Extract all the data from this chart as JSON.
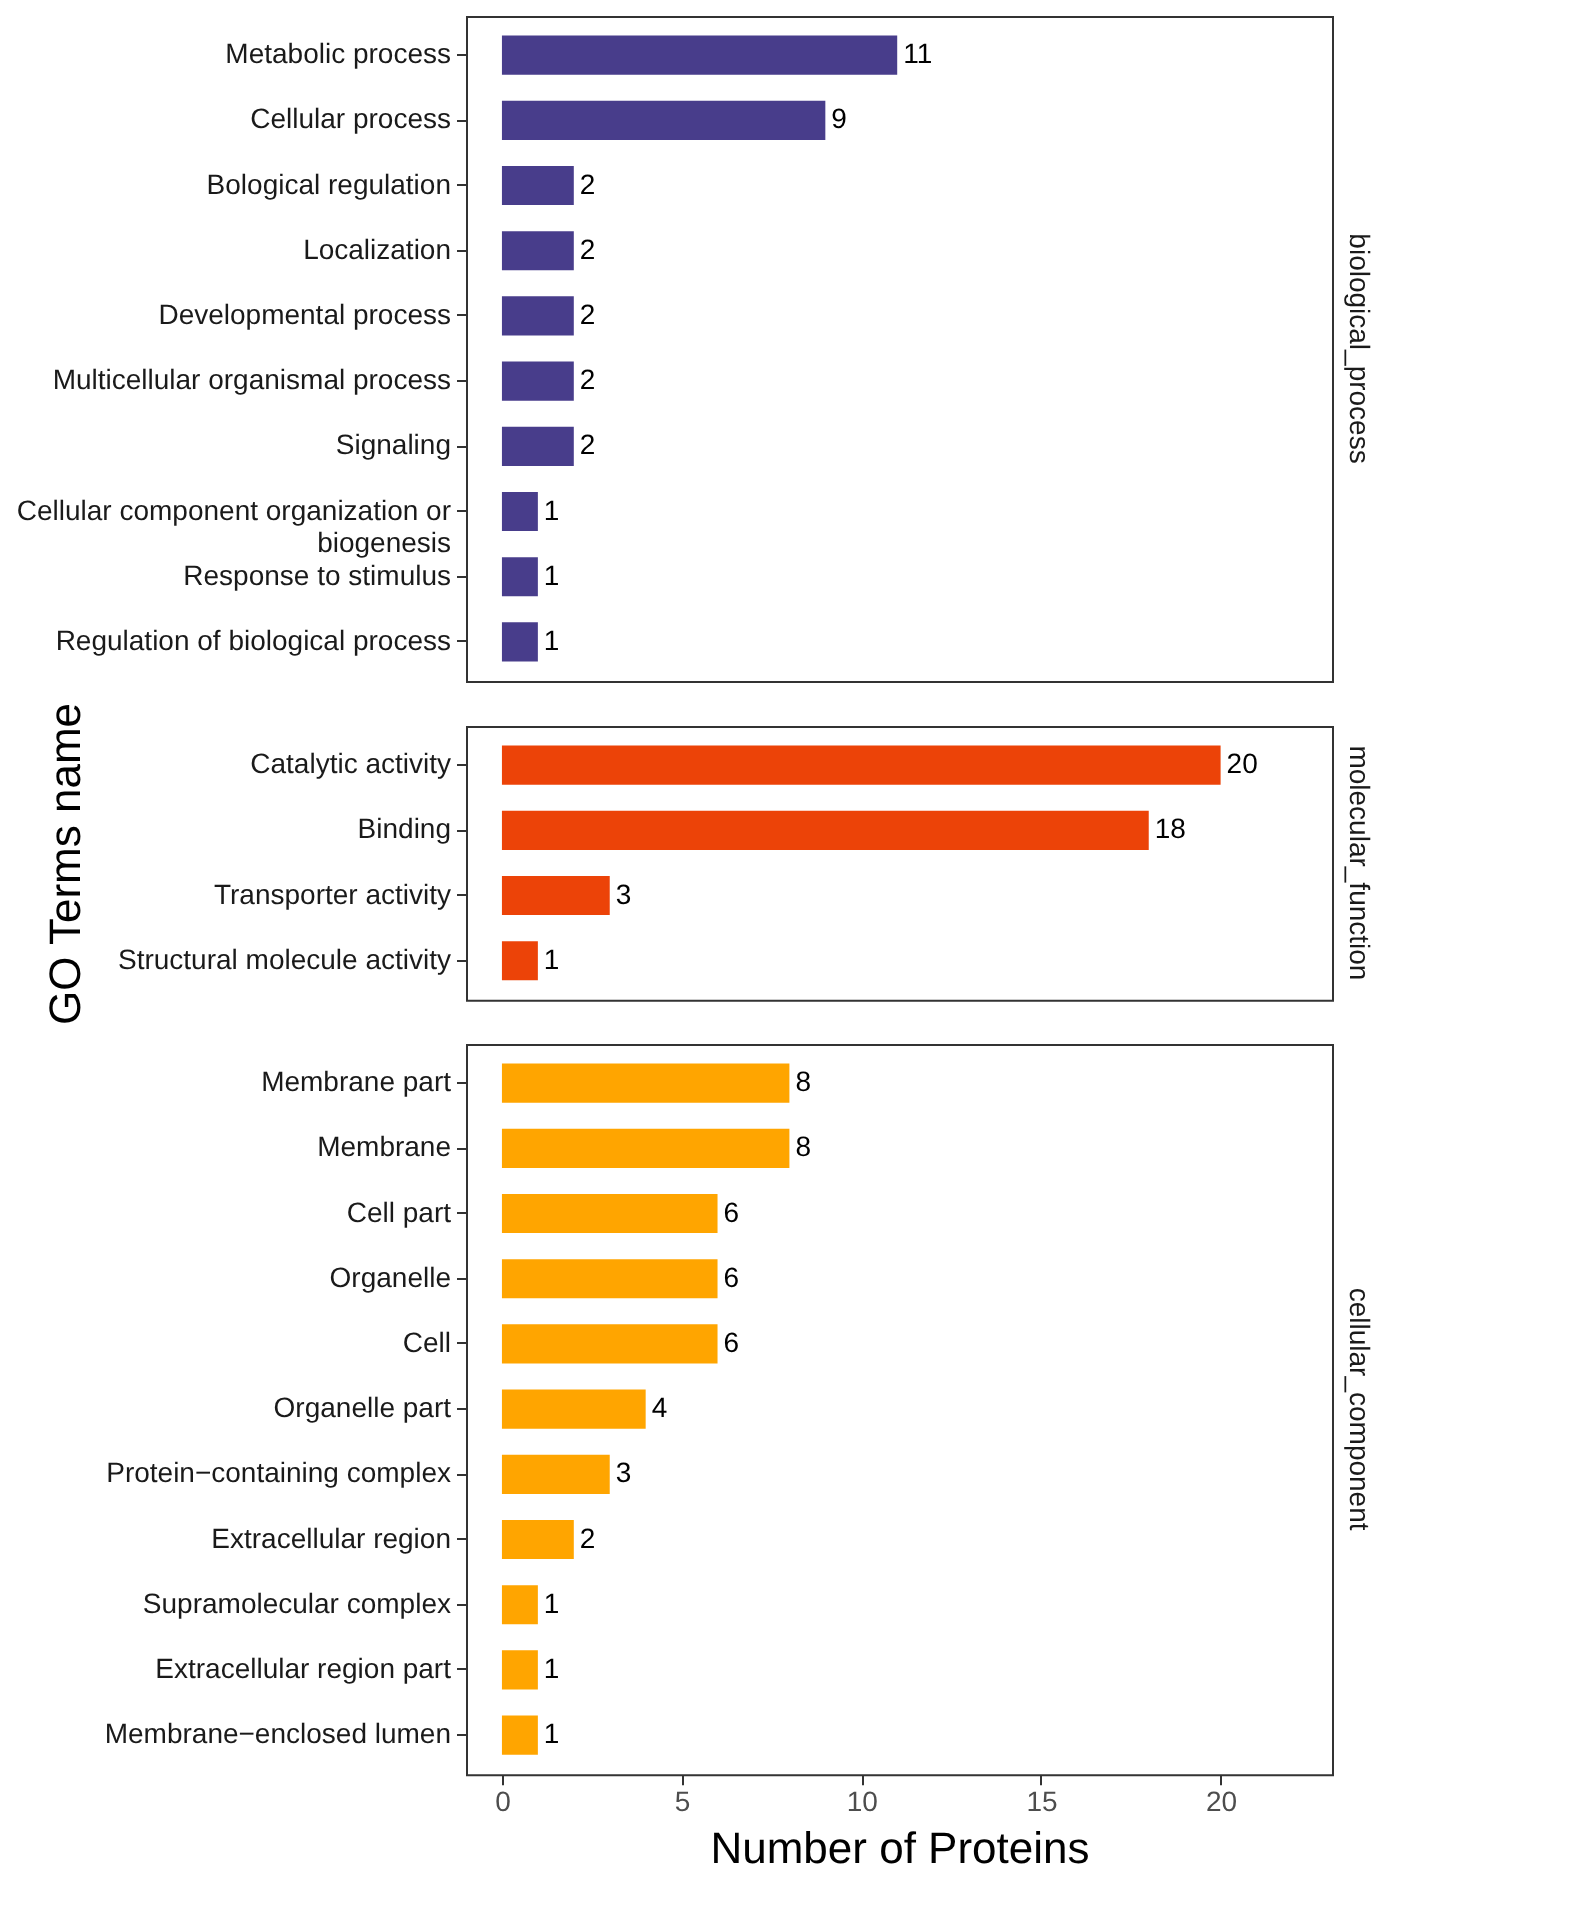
{
  "chart_data": [
    {
      "type": "bar",
      "orientation": "horizontal",
      "title": "biological_process",
      "categories": [
        "Metabolic process",
        "Cellular process",
        "Bological regulation",
        "Localization",
        "Developmental process",
        "Multicellular organismal process",
        "Signaling",
        "Cellular component organization or biogenesis",
        "Response to stimulus",
        "Regulation of biological process"
      ],
      "values": [
        11,
        9,
        2,
        2,
        2,
        2,
        2,
        1,
        1,
        1
      ],
      "color": "#483d8b",
      "xlim": [
        -1,
        23.1
      ],
      "xticks": [
        0,
        5,
        10,
        15,
        20
      ],
      "data_labels": true,
      "tick_labels": "y",
      "grid": false
    },
    {
      "type": "bar",
      "orientation": "horizontal",
      "title": "molecular_function",
      "ylabel": "GO Terms name",
      "categories": [
        "Catalytic activity",
        "Binding",
        "Transporter activity",
        "Structural molecule activity"
      ],
      "values": [
        20,
        18,
        3,
        1
      ],
      "color": "#ec4308",
      "xlim": [
        -1,
        23.1
      ],
      "xticks": [
        0,
        5,
        10,
        15,
        20
      ],
      "data_labels": true,
      "tick_labels": "y",
      "grid": false
    },
    {
      "type": "bar",
      "orientation": "horizontal",
      "title": "cellular_component",
      "xlabel": "Number of Proteins",
      "categories": [
        "Membrane part",
        "Membrane",
        "Cell part",
        "Organelle",
        "Cell",
        "Organelle part",
        "Protein−containing complex",
        "Extracellular region",
        "Supramolecular complex",
        "Extracellular region part",
        "Membrane−enclosed lumen"
      ],
      "values": [
        8,
        8,
        6,
        6,
        6,
        4,
        3,
        2,
        1,
        1,
        1
      ],
      "color": "#ffa500",
      "xlim": [
        -1,
        23.1
      ],
      "xticks": [
        0,
        5,
        10,
        15,
        20
      ],
      "data_labels": true,
      "grid": false
    }
  ]
}
